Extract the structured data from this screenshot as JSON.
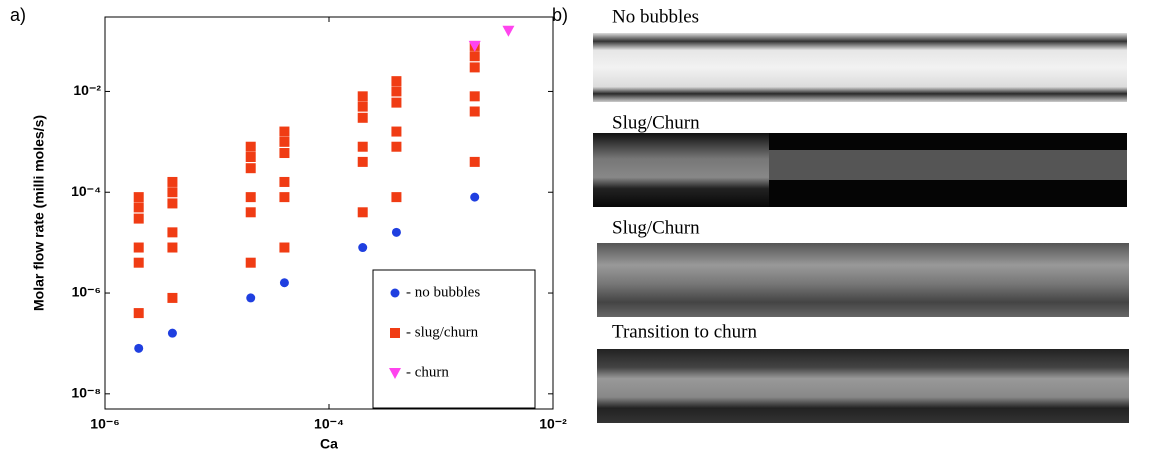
{
  "panel_labels": [
    "a)",
    "b)"
  ],
  "chart_data": {
    "type": "scatter",
    "xlabel": "Ca",
    "ylabel": "Molar flow rate (milli moles/s)",
    "xscale": "log",
    "yscale": "log",
    "legend": "lower right",
    "xlim": [
      1e-06,
      0.01
    ],
    "ylim": [
      5e-09,
      0.3
    ],
    "xticks": [
      {
        "value": 1e-06,
        "label": "10⁻⁶"
      },
      {
        "value": 0.0001,
        "label": "10⁻⁴"
      },
      {
        "value": 0.01,
        "label": "10⁻²"
      }
    ],
    "yticks": [
      {
        "value": 1e-08,
        "label": "10⁻⁸"
      },
      {
        "value": 1e-06,
        "label": "10⁻⁶"
      },
      {
        "value": 0.0001,
        "label": "10⁻⁴"
      },
      {
        "value": 0.01,
        "label": "10⁻²"
      }
    ],
    "series": [
      {
        "name": "- no bubbles",
        "color": "#1f3fe0",
        "marker": "circle",
        "x": [
          2e-06,
          4e-06,
          2e-05,
          4e-05,
          0.0002,
          0.0004,
          0.002
        ],
        "values": [
          8e-08,
          1.6e-07,
          8e-07,
          1.6e-06,
          8e-06,
          1.6e-05,
          8e-05
        ]
      },
      {
        "name": "-  slug/churn",
        "color": "#f03c14",
        "marker": "square",
        "x": [
          2e-06,
          2e-06,
          2e-06,
          2e-06,
          2e-06,
          2e-06,
          4e-06,
          4e-06,
          4e-06,
          4e-06,
          4e-06,
          4e-06,
          2e-05,
          2e-05,
          2e-05,
          2e-05,
          2e-05,
          2e-05,
          4e-05,
          4e-05,
          4e-05,
          4e-05,
          4e-05,
          4e-05,
          0.0002,
          0.0002,
          0.0002,
          0.0002,
          0.0002,
          0.0002,
          0.0004,
          0.0004,
          0.0004,
          0.0004,
          0.0004,
          0.0004,
          0.002,
          0.002,
          0.002,
          0.002,
          0.002,
          0.002
        ],
        "values": [
          8e-05,
          5e-05,
          3e-05,
          8e-06,
          4e-06,
          4e-07,
          0.00016,
          0.0001,
          6e-05,
          1.6e-05,
          8e-06,
          8e-07,
          0.0008,
          0.0005,
          0.0003,
          8e-05,
          4e-05,
          4e-06,
          0.0016,
          0.001,
          0.0006,
          0.00016,
          8e-05,
          8e-06,
          0.008,
          0.005,
          0.003,
          0.0008,
          0.0004,
          4e-05,
          0.016,
          0.01,
          0.006,
          0.0016,
          0.0008,
          8e-05,
          0.08,
          0.05,
          0.03,
          0.008,
          0.004,
          0.0004
        ]
      },
      {
        "name": "- churn",
        "color": "#ff44ee",
        "marker": "triangle-down",
        "x": [
          0.002,
          0.004
        ],
        "values": [
          0.08,
          0.16
        ]
      }
    ]
  },
  "photos": [
    {
      "caption": "No bubbles"
    },
    {
      "caption": "Slug/Churn"
    },
    {
      "caption": "Slug/Churn"
    },
    {
      "caption": "Transition to churn"
    }
  ]
}
